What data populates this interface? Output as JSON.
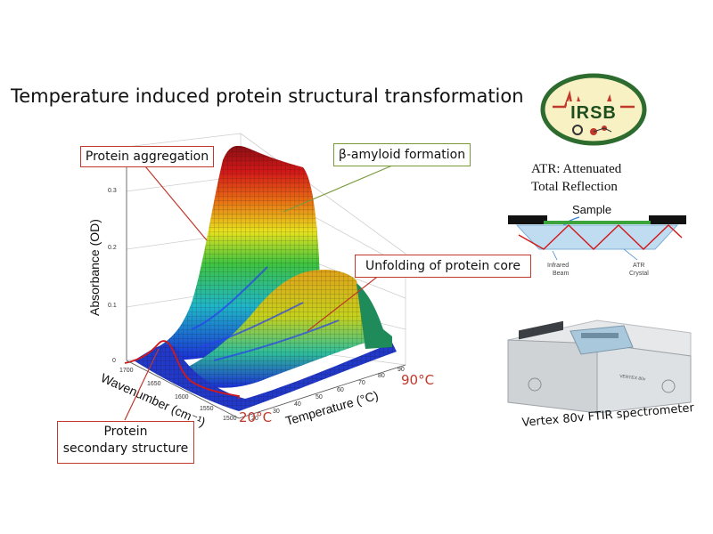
{
  "title": "Temperature induced protein structural transformation",
  "logo": {
    "text": "IRSB",
    "colors": {
      "ring": "#2e6b2e",
      "text": "#1f4e1f",
      "accent": "#c0392b"
    }
  },
  "plot": {
    "ylabel": "Absorbance (OD)",
    "xlabel": "Wavenumber (cm⁻¹)",
    "tlabel": "Temperature (°C)",
    "y_ticks": [
      "0.3",
      "0.2",
      "0.1",
      "0"
    ],
    "wavenumber_ticks": [
      "1700",
      "1650",
      "1600",
      "1550",
      "1500"
    ],
    "temperature_ticks": [
      "20",
      "30",
      "40",
      "50",
      "60",
      "70",
      "80",
      "90"
    ],
    "temp_low": "20°C",
    "temp_high": "90°C"
  },
  "callouts": {
    "aggregation": "Protein aggregation",
    "amyloid": "β-amyloid formation",
    "unfolding": "Unfolding of protein core",
    "secondary_line1": "Protein",
    "secondary_line2": "secondary structure"
  },
  "atr": {
    "title_line1": "ATR: Attenuated",
    "title_line2": "Total Reflection",
    "sample": "Sample",
    "beam_line1": "Infrared",
    "beam_line2": "Beam",
    "crystal_line1": "ATR",
    "crystal_line2": "Crystal"
  },
  "spectrometer": {
    "caption": "Vertex 80v FTIR spectrometer",
    "model": "VERTEX 80v"
  },
  "colors": {
    "callout_border": "#c0392b",
    "accent_green": "#7a9a3a"
  }
}
